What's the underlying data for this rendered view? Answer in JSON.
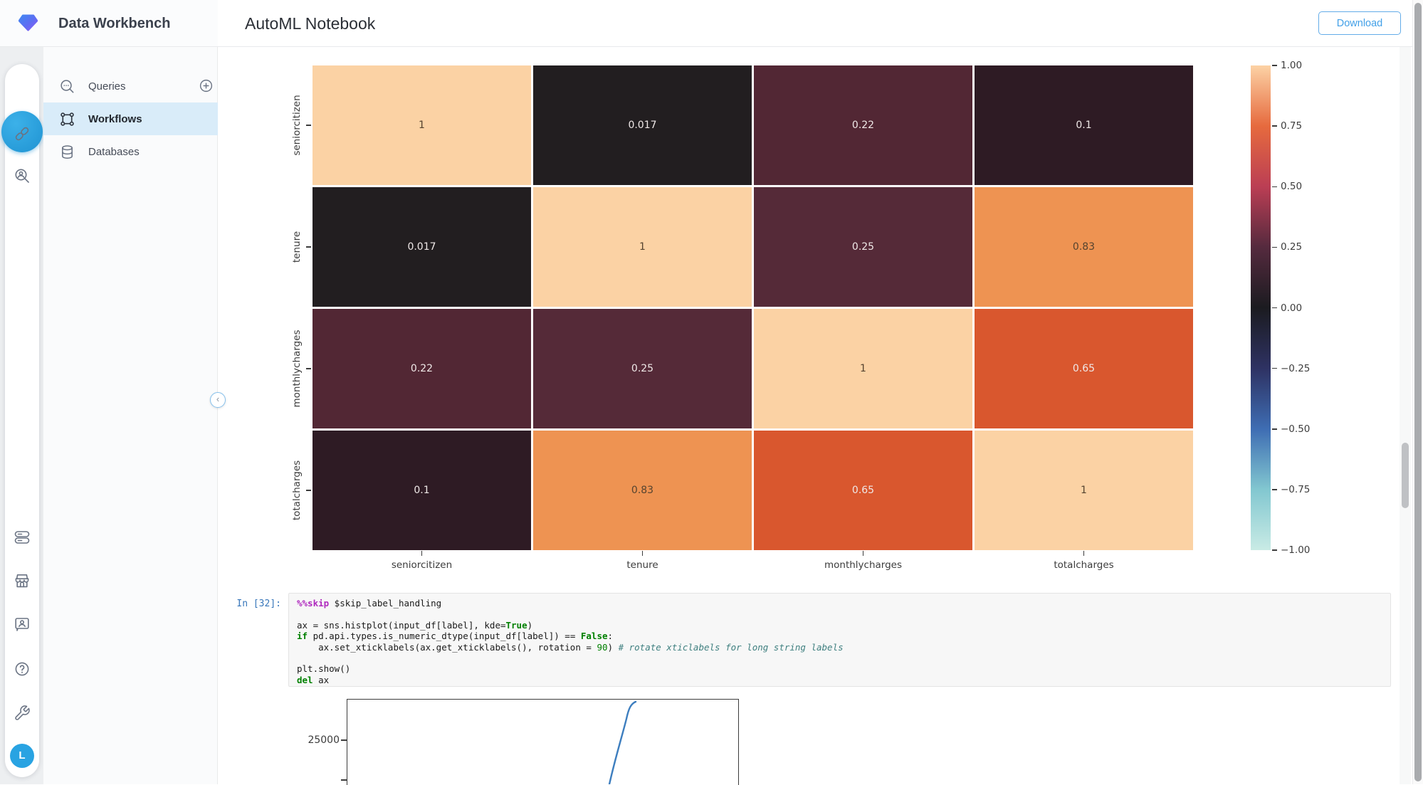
{
  "header": {
    "brand": "Data Workbench",
    "title": "AutoML Notebook",
    "download_label": "Download"
  },
  "sidebar": {
    "items": [
      {
        "label": "Queries"
      },
      {
        "label": "Workflows"
      },
      {
        "label": "Databases"
      }
    ],
    "active_item": "Workflows",
    "active_row_color": "#d9ecf9",
    "avatar_initial": "L",
    "accent_blue": "#29a3e2",
    "rail_icons_top": [
      "link-icon",
      "workflow-sync-icon",
      "user-search-icon"
    ],
    "rail_icons_bottom": [
      "instances-icon",
      "marketplace-icon",
      "contact-card-icon",
      "help-icon",
      "tools-icon"
    ]
  },
  "notebook": {
    "cell_prompt": "In [32]:",
    "code_lines": [
      [
        {
          "t": "%%skip",
          "c": "magic"
        },
        {
          "t": " $skip_label_handling",
          "c": "p"
        }
      ],
      [],
      [
        {
          "t": "ax = sns.histplot(input_df[label], kde=",
          "c": "p"
        },
        {
          "t": "True",
          "c": "kw"
        },
        {
          "t": ")",
          "c": "p"
        }
      ],
      [
        {
          "t": "if",
          "c": "kw"
        },
        {
          "t": " pd.api.types.is_numeric_dtype(input_df[label]) == ",
          "c": "p"
        },
        {
          "t": "False",
          "c": "kw"
        },
        {
          "t": ":",
          "c": "p"
        }
      ],
      [
        {
          "t": "    ax.set_xticklabels(ax.get_xticklabels(), rotation = ",
          "c": "p"
        },
        {
          "t": "90",
          "c": "num"
        },
        {
          "t": ") ",
          "c": "p"
        },
        {
          "t": "# rotate xticlabels for long string labels",
          "c": "com"
        }
      ],
      [],
      [
        {
          "t": "plt.show()",
          "c": "p"
        }
      ],
      [
        {
          "t": "del",
          "c": "kw"
        },
        {
          "t": " ax",
          "c": "p"
        }
      ]
    ]
  },
  "chart_data": [
    {
      "type": "heatmap",
      "categories": [
        "seniorcitizen",
        "tenure",
        "monthlycharges",
        "totalcharges"
      ],
      "matrix": [
        [
          1,
          0.017,
          0.22,
          0.1
        ],
        [
          0.017,
          1,
          0.25,
          0.83
        ],
        [
          0.22,
          0.25,
          1,
          0.65
        ],
        [
          0.1,
          0.83,
          0.65,
          1
        ]
      ],
      "vmin": -1,
      "vmax": 1,
      "colormap": "icefire",
      "cell_colors": {
        "1": "#fbd2a4",
        "0.83": "#ee9352",
        "0.65": "#d9572e",
        "0.25": "#552a38",
        "0.22": "#522734",
        "0.1": "#2e1b24",
        "0.017": "#221e20"
      },
      "dark_text_values": [
        "1",
        "0.83"
      ],
      "text_dark": "#55432f",
      "text_light": "#efe8e7",
      "colorbar": {
        "ticks": [
          "1.00",
          "0.75",
          "0.50",
          "0.25",
          "0.00",
          "−0.25",
          "−0.50",
          "−0.75",
          "−1.00"
        ],
        "gradient": [
          "#fcd2a5",
          "#e66a3e",
          "#bb3e54",
          "#552a3e",
          "#1b1b20",
          "#2e3263",
          "#3e6db3",
          "#82c7d0",
          "#c9ebe5"
        ]
      }
    },
    {
      "type": "line",
      "yticks": [
        "25000"
      ],
      "line_color": "#3d7ebf",
      "points_frac": [
        [
          0.671,
          0.0
        ],
        [
          0.69,
          0.4
        ],
        [
          0.713,
          0.78
        ],
        [
          0.724,
          0.93
        ],
        [
          0.737,
          0.98
        ]
      ],
      "partially_visible": true
    }
  ]
}
